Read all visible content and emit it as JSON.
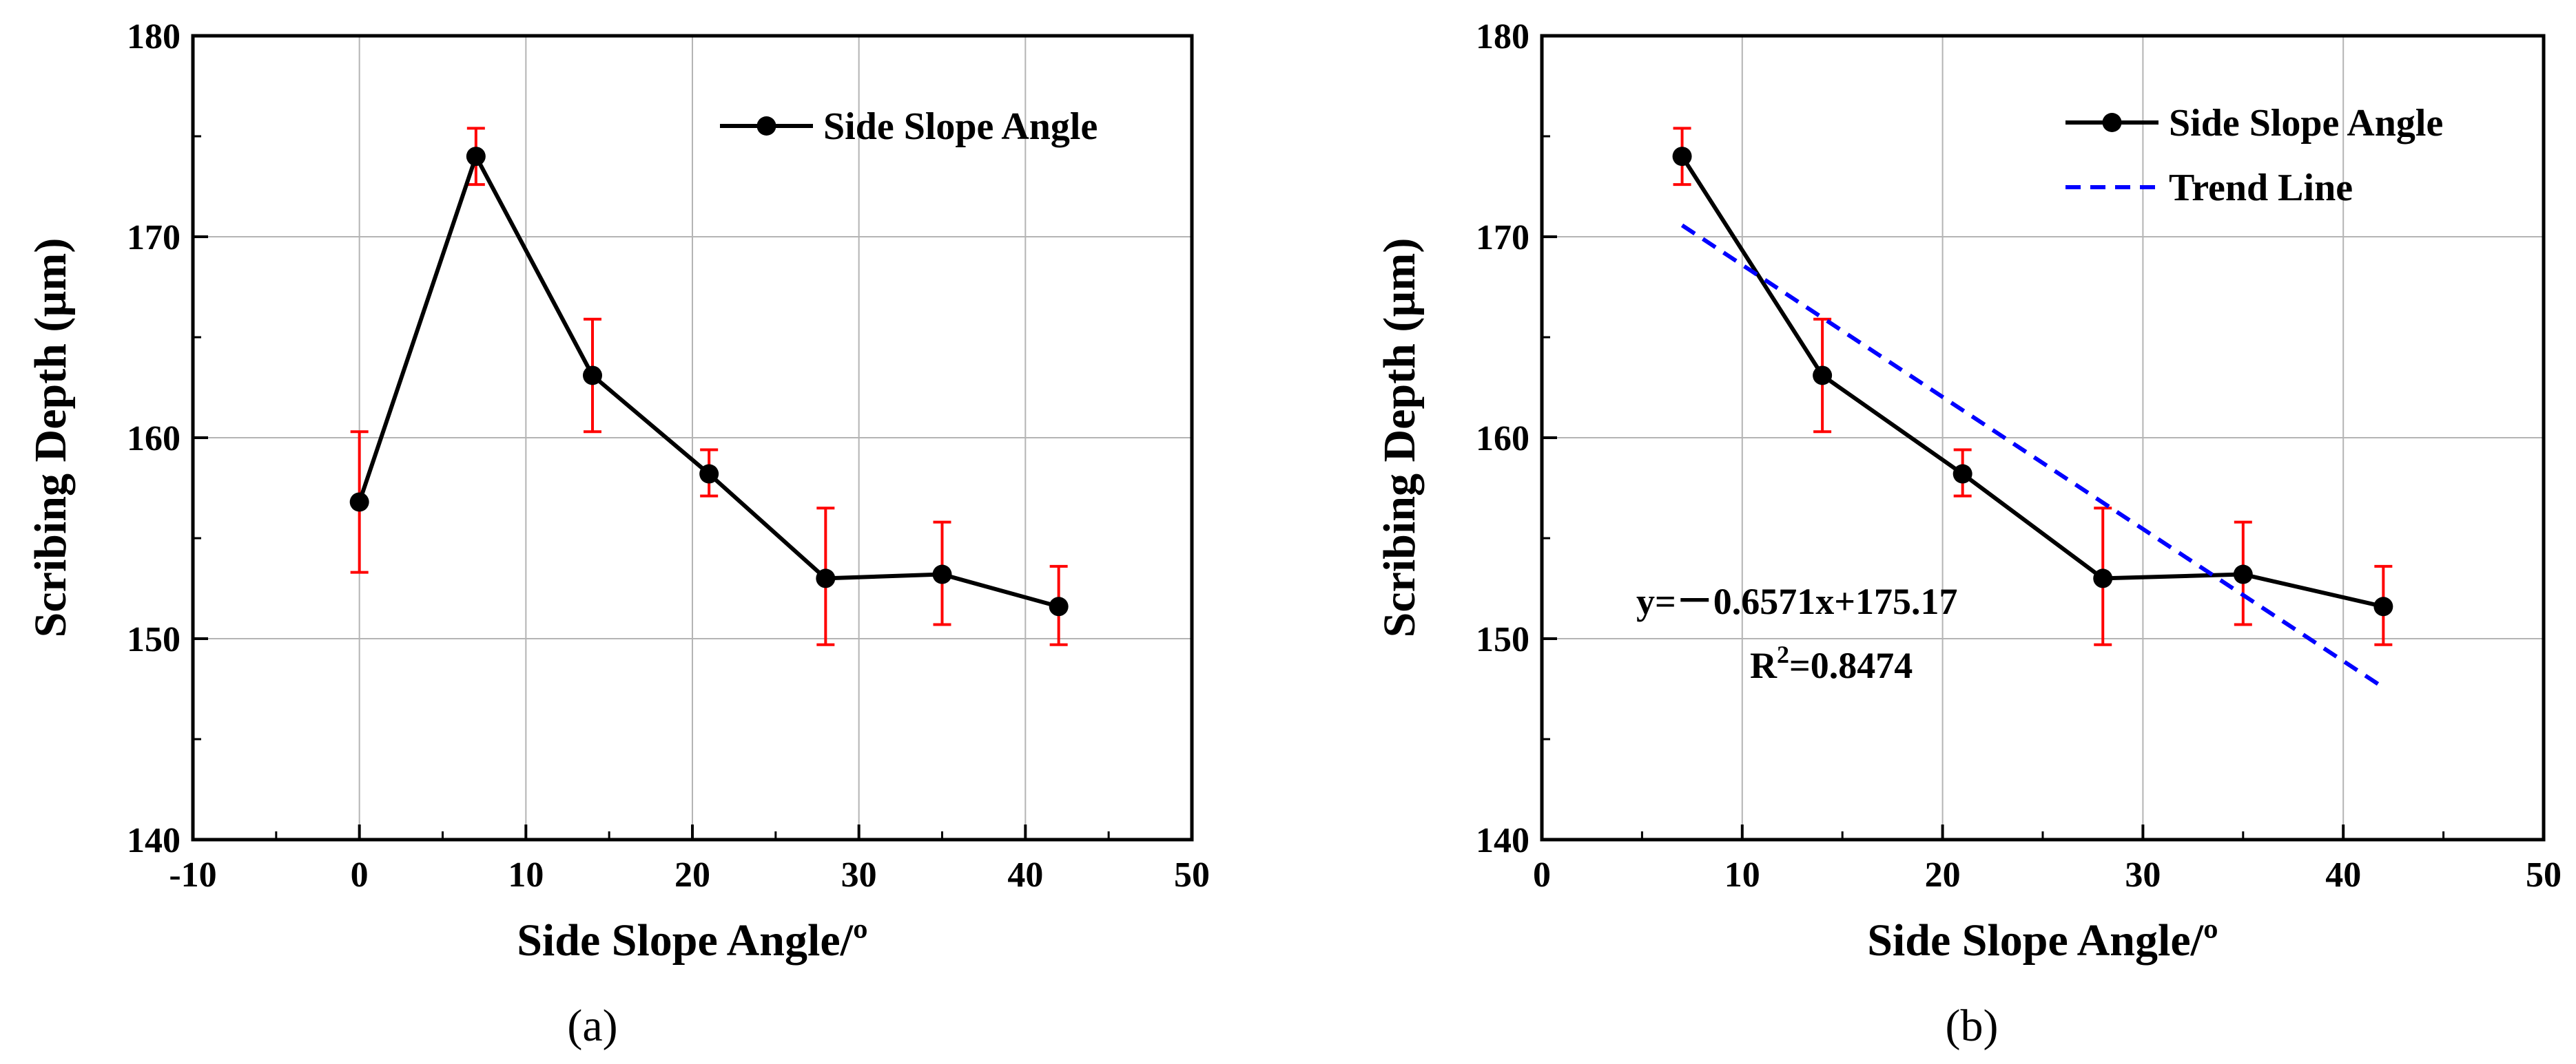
{
  "chart_data": [
    {
      "type": "line",
      "panel_label": "(a)",
      "title": "",
      "xlabel": "Side Slope Angle/º",
      "ylabel": "Scribing Depth (µm)",
      "xlim": [
        -10,
        50
      ],
      "ylim": [
        140,
        180
      ],
      "xticks": [
        -10,
        0,
        10,
        20,
        30,
        40,
        50
      ],
      "yticks": [
        140,
        150,
        160,
        170,
        180
      ],
      "xtick_labels": [
        "-10",
        "0",
        "10",
        "20",
        "30",
        "40",
        "50"
      ],
      "ytick_labels": [
        "140",
        "150",
        "160",
        "170",
        "180"
      ],
      "grid": true,
      "legend_position": "top-right",
      "series": [
        {
          "name": "Side Slope Angle",
          "color": "#000000",
          "error_color": "#ff0000",
          "x": [
            0,
            7,
            14,
            21,
            28,
            35,
            42
          ],
          "y": [
            156.8,
            174.0,
            163.1,
            158.2,
            153.0,
            153.2,
            151.6
          ],
          "err_low": [
            153.3,
            172.6,
            160.3,
            157.1,
            149.7,
            150.7,
            149.7
          ],
          "err_high": [
            160.3,
            175.4,
            165.9,
            159.4,
            156.5,
            155.8,
            153.6
          ]
        }
      ]
    },
    {
      "type": "line",
      "panel_label": "(b)",
      "title": "",
      "xlabel": "Side Slope Angle/º",
      "ylabel": "Scribing Depth (µm)",
      "xlim": [
        0,
        50
      ],
      "ylim": [
        140,
        180
      ],
      "xticks": [
        0,
        10,
        20,
        30,
        40,
        50
      ],
      "yticks": [
        140,
        150,
        160,
        170,
        180
      ],
      "xtick_labels": [
        "0",
        "10",
        "20",
        "30",
        "40",
        "50"
      ],
      "ytick_labels": [
        "140",
        "150",
        "160",
        "170",
        "180"
      ],
      "grid": true,
      "legend_position": "top-right",
      "series": [
        {
          "name": "Side Slope Angle",
          "color": "#000000",
          "error_color": "#ff0000",
          "x": [
            7,
            14,
            21,
            28,
            35,
            42
          ],
          "y": [
            174.0,
            163.1,
            158.2,
            153.0,
            153.2,
            151.6
          ],
          "err_low": [
            172.6,
            160.3,
            157.1,
            149.7,
            150.7,
            149.7
          ],
          "err_high": [
            175.4,
            165.9,
            159.4,
            156.5,
            155.8,
            153.6
          ]
        },
        {
          "name": "Trend Line",
          "color": "#0000ff",
          "style": "dashed",
          "x": [
            7,
            42
          ],
          "slope": -0.6571,
          "intercept": 175.17
        }
      ],
      "annotation": {
        "equation": "y=－0.6571x+175.17",
        "r2_prefix": "R",
        "r2_sup": "2",
        "r2_value": "=0.8474"
      }
    }
  ]
}
